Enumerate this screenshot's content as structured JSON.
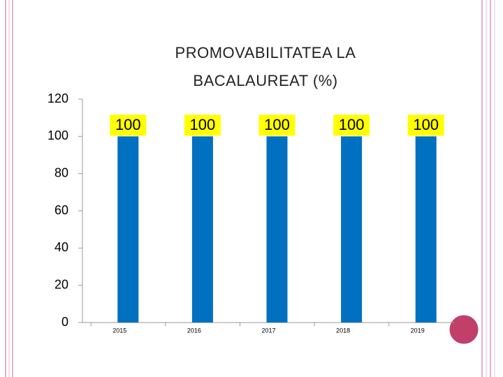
{
  "chart_data": {
    "type": "bar",
    "title": "PROMOVABILITATEA LA BACALAUREAT (%)",
    "categories": [
      "2015",
      "2016",
      "2017",
      "2018",
      "2019"
    ],
    "values": [
      100,
      100,
      100,
      100,
      100
    ],
    "color": "#0070c0",
    "ylim": [
      0,
      120
    ],
    "yticks": [
      0,
      20,
      40,
      60,
      80,
      100,
      120
    ],
    "grid": false
  }
}
